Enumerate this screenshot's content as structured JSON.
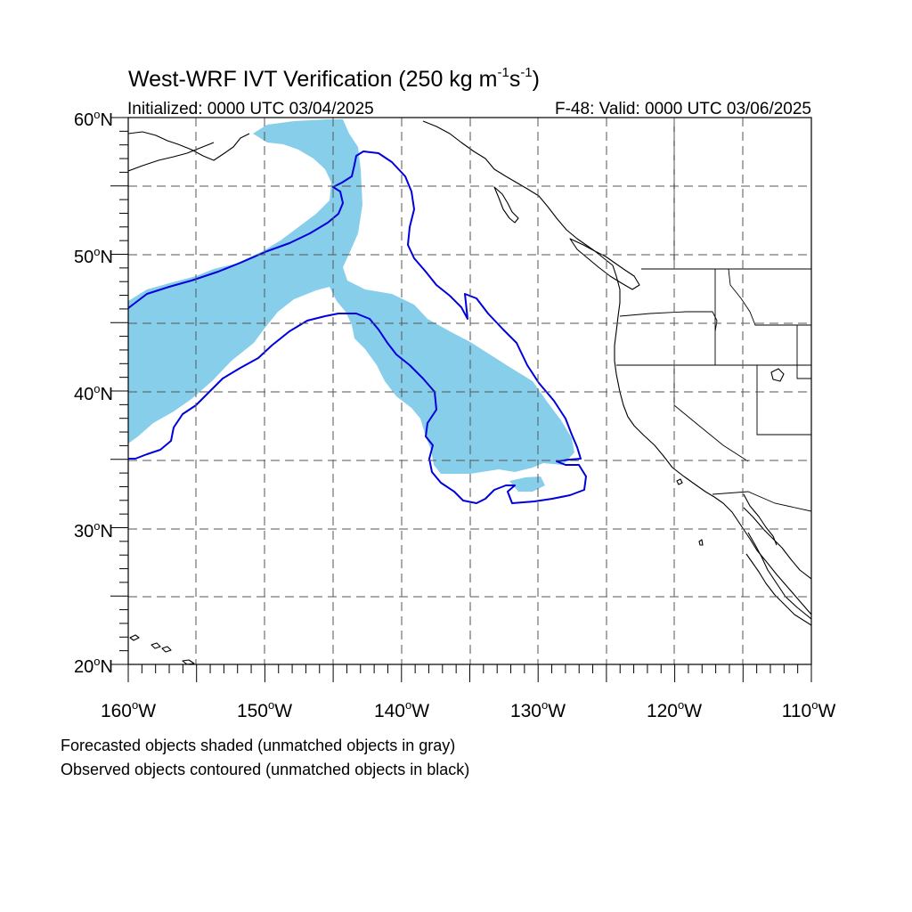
{
  "title": "West-WRF IVT Verification (250 kg m",
  "title_sup1": "-1",
  "title_mid": "s",
  "title_sup2": "-1",
  "title_end": ")",
  "init_label": "Initialized: 0000 UTC 03/04/2025",
  "valid_label": "F-48: Valid: 0000 UTC 03/06/2025",
  "lat_labels": [
    {
      "deg": "60",
      "suffix": "N"
    },
    {
      "deg": "50",
      "suffix": "N"
    },
    {
      "deg": "40",
      "suffix": "N"
    },
    {
      "deg": "30",
      "suffix": "N"
    },
    {
      "deg": "20",
      "suffix": "N"
    }
  ],
  "lon_labels": [
    {
      "deg": "160",
      "suffix": "W"
    },
    {
      "deg": "150",
      "suffix": "W"
    },
    {
      "deg": "140",
      "suffix": "W"
    },
    {
      "deg": "130",
      "suffix": "W"
    },
    {
      "deg": "120",
      "suffix": "W"
    },
    {
      "deg": "110",
      "suffix": "W"
    }
  ],
  "note_forecast": "Forecasted objects shaded (unmatched objects in gray)",
  "note_observed": "Observed objects contoured (unmatched objects in black)",
  "colors": {
    "forecast_fill": "#87ceeb",
    "observed_contour": "#0000dd",
    "grid": "#555555",
    "coast": "#000000"
  },
  "map_extent": {
    "lon_min": -160,
    "lon_max": -110,
    "lat_min": 20,
    "lat_max": 60
  }
}
